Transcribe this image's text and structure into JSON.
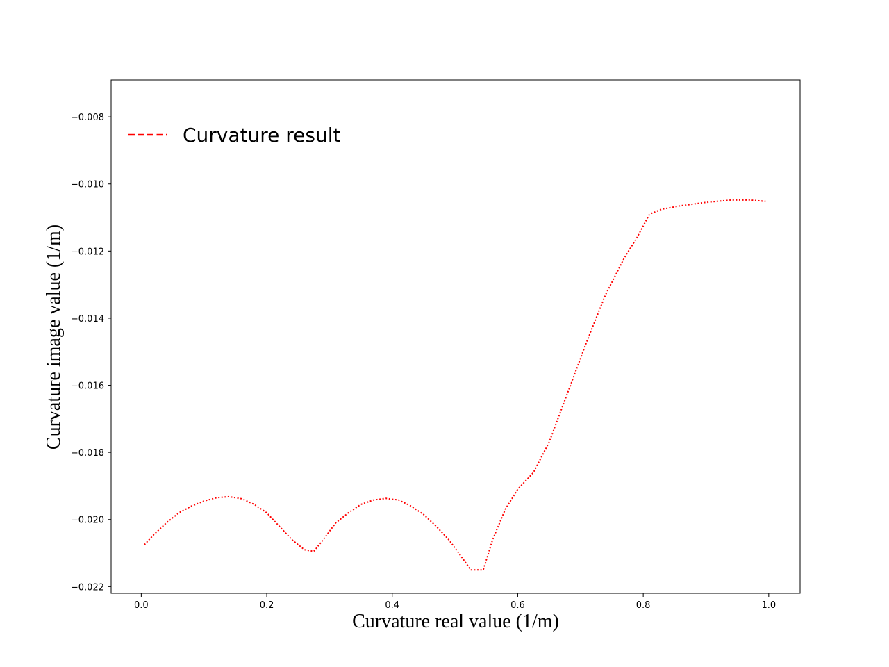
{
  "chart_data": {
    "type": "line",
    "title": "",
    "xlabel": "Curvature real value (1/m)",
    "ylabel": "Curvature image value (1/m)",
    "xlim": [
      -0.048,
      1.05
    ],
    "ylim": [
      -0.0222,
      -0.0069
    ],
    "xticks": [
      0.0,
      0.2,
      0.4,
      0.6,
      0.8,
      1.0
    ],
    "xtick_labels": [
      "0.0",
      "0.2",
      "0.4",
      "0.6",
      "0.8",
      "1.0"
    ],
    "yticks": [
      -0.008,
      -0.01,
      -0.012,
      -0.014,
      -0.016,
      -0.018,
      -0.02,
      -0.022
    ],
    "ytick_labels": [
      "−0.008",
      "−0.010",
      "−0.012",
      "−0.014",
      "−0.016",
      "−0.018",
      "−0.020",
      "−0.022"
    ],
    "grid": false,
    "legend_position": "top-left",
    "series": [
      {
        "name": "Curvature result",
        "color": "#ff0000",
        "line_style": "dotted",
        "x": [
          0.005,
          0.02,
          0.04,
          0.06,
          0.08,
          0.1,
          0.12,
          0.14,
          0.16,
          0.18,
          0.2,
          0.22,
          0.24,
          0.26,
          0.275,
          0.29,
          0.31,
          0.33,
          0.35,
          0.37,
          0.39,
          0.41,
          0.43,
          0.45,
          0.47,
          0.49,
          0.51,
          0.525,
          0.545,
          0.56,
          0.58,
          0.6,
          0.625,
          0.65,
          0.68,
          0.71,
          0.74,
          0.77,
          0.79,
          0.81,
          0.83,
          0.86,
          0.9,
          0.94,
          0.97,
          0.995
        ],
        "y": [
          -0.02075,
          -0.02045,
          -0.0201,
          -0.0198,
          -0.0196,
          -0.01945,
          -0.01935,
          -0.01932,
          -0.01938,
          -0.01955,
          -0.0198,
          -0.0202,
          -0.0206,
          -0.0209,
          -0.02095,
          -0.0206,
          -0.0201,
          -0.0198,
          -0.01955,
          -0.01942,
          -0.01937,
          -0.01942,
          -0.0196,
          -0.01985,
          -0.0202,
          -0.0206,
          -0.0211,
          -0.0215,
          -0.0215,
          -0.0206,
          -0.0197,
          -0.0191,
          -0.0186,
          -0.0177,
          -0.0162,
          -0.0147,
          -0.0133,
          -0.0122,
          -0.0116,
          -0.0109,
          -0.01075,
          -0.01065,
          -0.01055,
          -0.01048,
          -0.01048,
          -0.01052
        ]
      }
    ]
  }
}
